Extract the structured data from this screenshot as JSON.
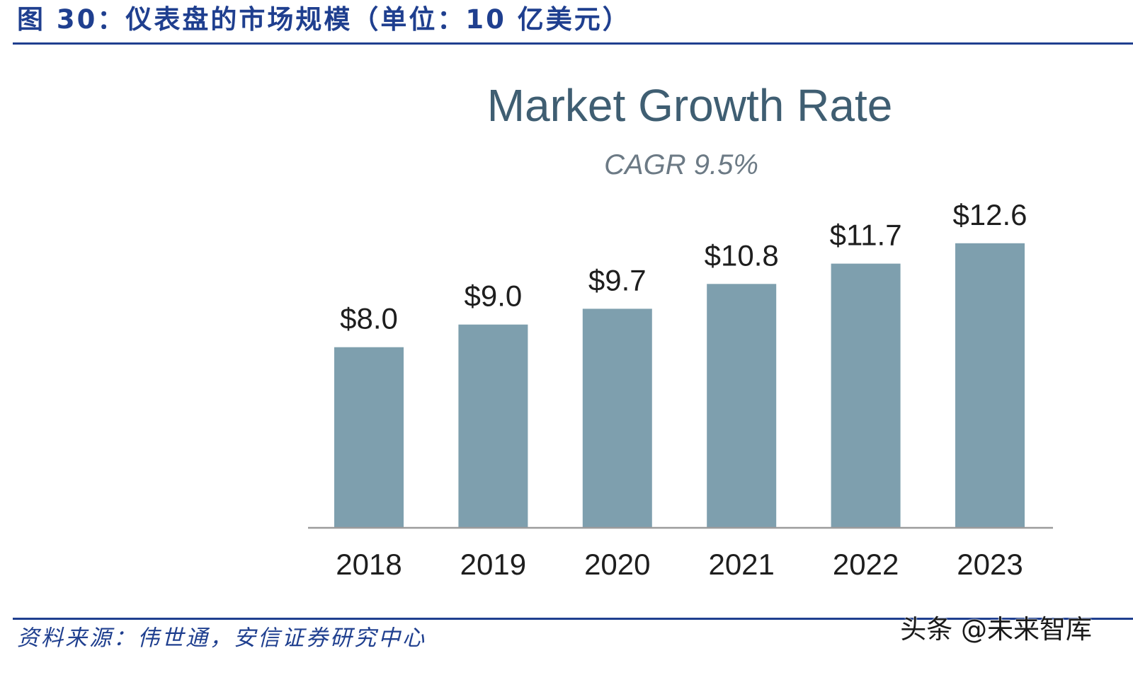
{
  "figure": {
    "caption": "图 30：仪表盘的市场规模（单位：10 亿美元）",
    "source": "资料来源：伟世通，安信证券研究中心",
    "watermark": "头条 @未来智库",
    "rule_color": "#1f3f8f"
  },
  "chart_data": {
    "type": "bar",
    "title": "Market Growth Rate",
    "subtitle": "CAGR 9.5%",
    "categories": [
      "2018",
      "2019",
      "2020",
      "2021",
      "2022",
      "2023"
    ],
    "values": [
      8.0,
      9.0,
      9.7,
      10.8,
      11.7,
      12.6
    ],
    "data_labels": [
      "$8.0",
      "$9.0",
      "$9.7",
      "$10.8",
      "$11.7",
      "$12.6"
    ],
    "unit": "10 亿美元",
    "xlabel": "",
    "ylabel": "",
    "ylim": [
      0,
      14.6
    ],
    "grid": false,
    "legend": "none",
    "bar_color": "#7e9fae",
    "title_color": "#3f5e72"
  }
}
